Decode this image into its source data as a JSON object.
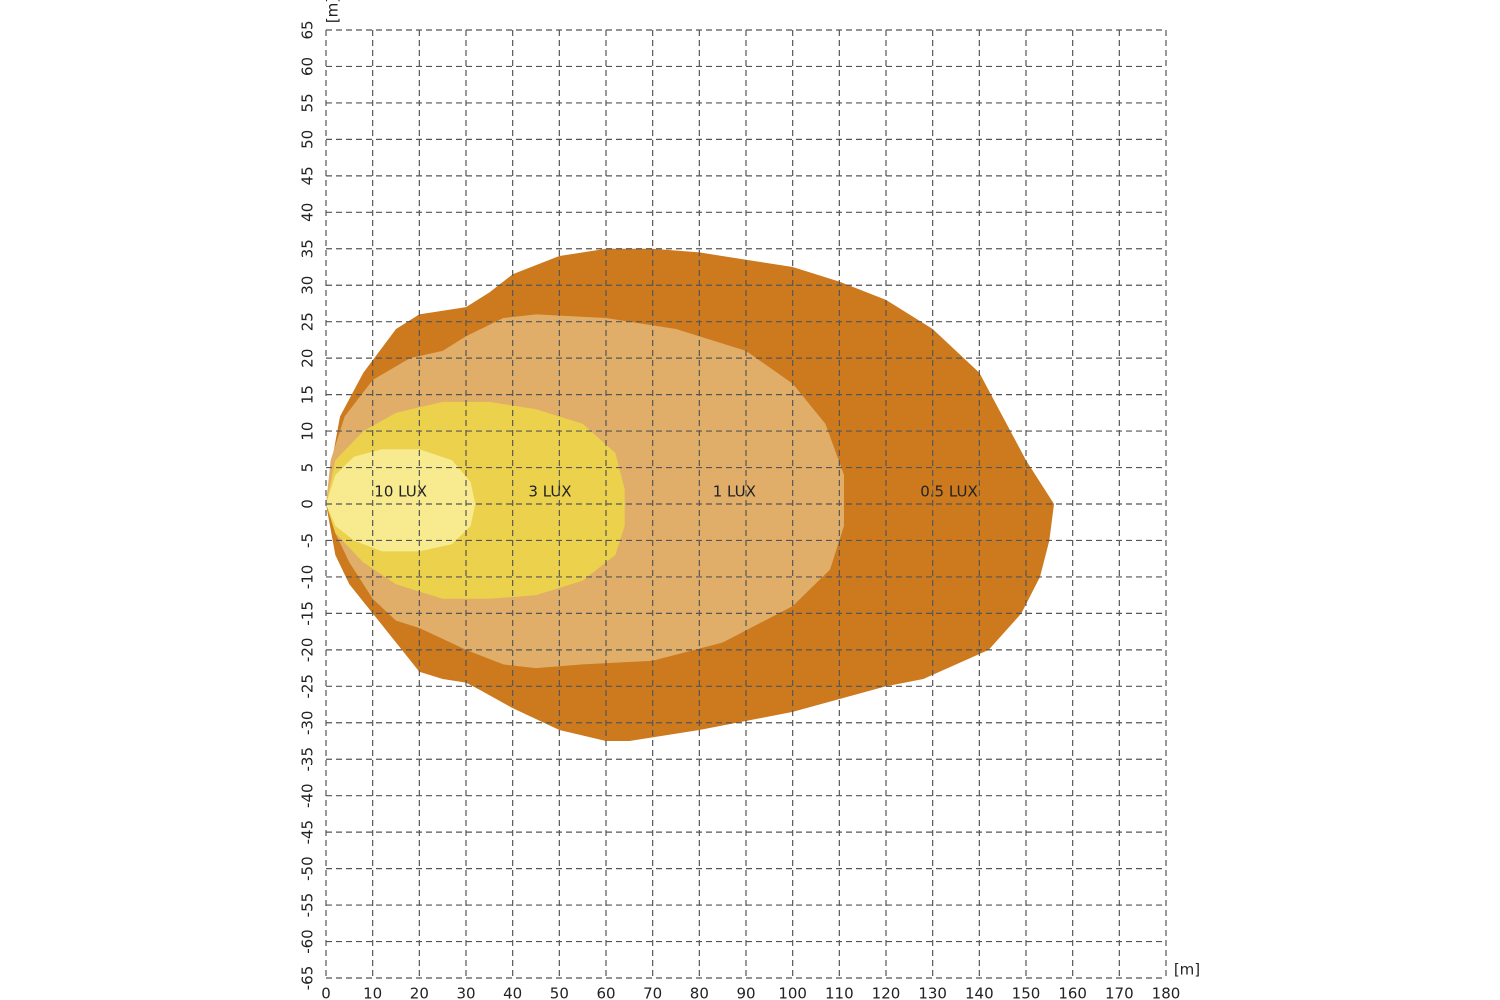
{
  "chart_data": {
    "type": "isolux",
    "x_label": "[m]",
    "y_label": "[m]",
    "xlim": [
      0,
      180
    ],
    "ylim": [
      -65,
      65
    ],
    "xticks": [
      0,
      10,
      20,
      30,
      40,
      50,
      60,
      70,
      80,
      90,
      100,
      110,
      120,
      130,
      140,
      150,
      160,
      170,
      180
    ],
    "yticks": [
      -65,
      -60,
      -55,
      -50,
      -45,
      -40,
      -35,
      -30,
      -25,
      -20,
      -15,
      -10,
      -5,
      0,
      5,
      10,
      15,
      20,
      25,
      30,
      35,
      40,
      45,
      50,
      55,
      60,
      65
    ],
    "grid": true,
    "series": [
      {
        "name": "0.5 LUX",
        "color": "#cd7a1e",
        "x": [
          0,
          1,
          3,
          8,
          15,
          20,
          25,
          30,
          35,
          40,
          50,
          60,
          70,
          80,
          90,
          100,
          110,
          120,
          130,
          140,
          145,
          150,
          156,
          155,
          153,
          149,
          142,
          128,
          120,
          100,
          80,
          65,
          60,
          50,
          40,
          33,
          30,
          25,
          20,
          15,
          10,
          5,
          2
        ],
        "y": [
          0,
          5,
          12,
          18,
          24,
          26,
          26.5,
          27,
          29,
          31.5,
          34,
          35,
          35,
          34.5,
          33.5,
          32.5,
          30.5,
          28,
          24,
          18,
          12,
          6,
          0,
          -5,
          -10,
          -15,
          -20,
          -24,
          -25,
          -28.5,
          -31,
          -32.5,
          -32.5,
          -31,
          -28,
          -25.5,
          -24.5,
          -24,
          -23,
          -19,
          -15,
          -11,
          -7
        ]
      },
      {
        "name": "1 LUX",
        "color": "#e0ae68",
        "x": [
          0,
          1,
          4,
          10,
          18,
          25,
          30,
          38,
          45,
          60,
          75,
          90,
          100,
          107,
          111,
          111,
          108,
          100,
          85,
          70,
          55,
          45,
          38,
          30,
          25,
          20,
          15,
          10,
          5,
          2
        ],
        "y": [
          0,
          6,
          12,
          17,
          20,
          21,
          23,
          25.5,
          26,
          25.5,
          24,
          21,
          16.5,
          11,
          4,
          -3,
          -9,
          -14,
          -19,
          -21.5,
          -22,
          -22.5,
          -22,
          -20,
          -18.5,
          -17,
          -16,
          -13,
          -8,
          -4
        ]
      },
      {
        "name": "3 LUX",
        "color": "#ecd24c",
        "x": [
          0,
          2,
          8,
          15,
          25,
          35,
          45,
          55,
          62,
          64,
          64,
          62,
          55,
          45,
          35,
          25,
          15,
          8,
          2
        ],
        "y": [
          0,
          6,
          10,
          12.5,
          14,
          14,
          13,
          11,
          7,
          2,
          -3,
          -7,
          -10.5,
          -12.5,
          -13,
          -13,
          -11,
          -8,
          -4
        ]
      },
      {
        "name": "10 LUX",
        "color": "#f8ea8f",
        "x": [
          0,
          2,
          6,
          12,
          20,
          27,
          31,
          32,
          31,
          27,
          20,
          12,
          6,
          2
        ],
        "y": [
          0,
          4,
          6.5,
          7.5,
          7.5,
          6,
          3,
          0,
          -3,
          -5.5,
          -6.5,
          -6.5,
          -5,
          -3
        ]
      }
    ]
  }
}
